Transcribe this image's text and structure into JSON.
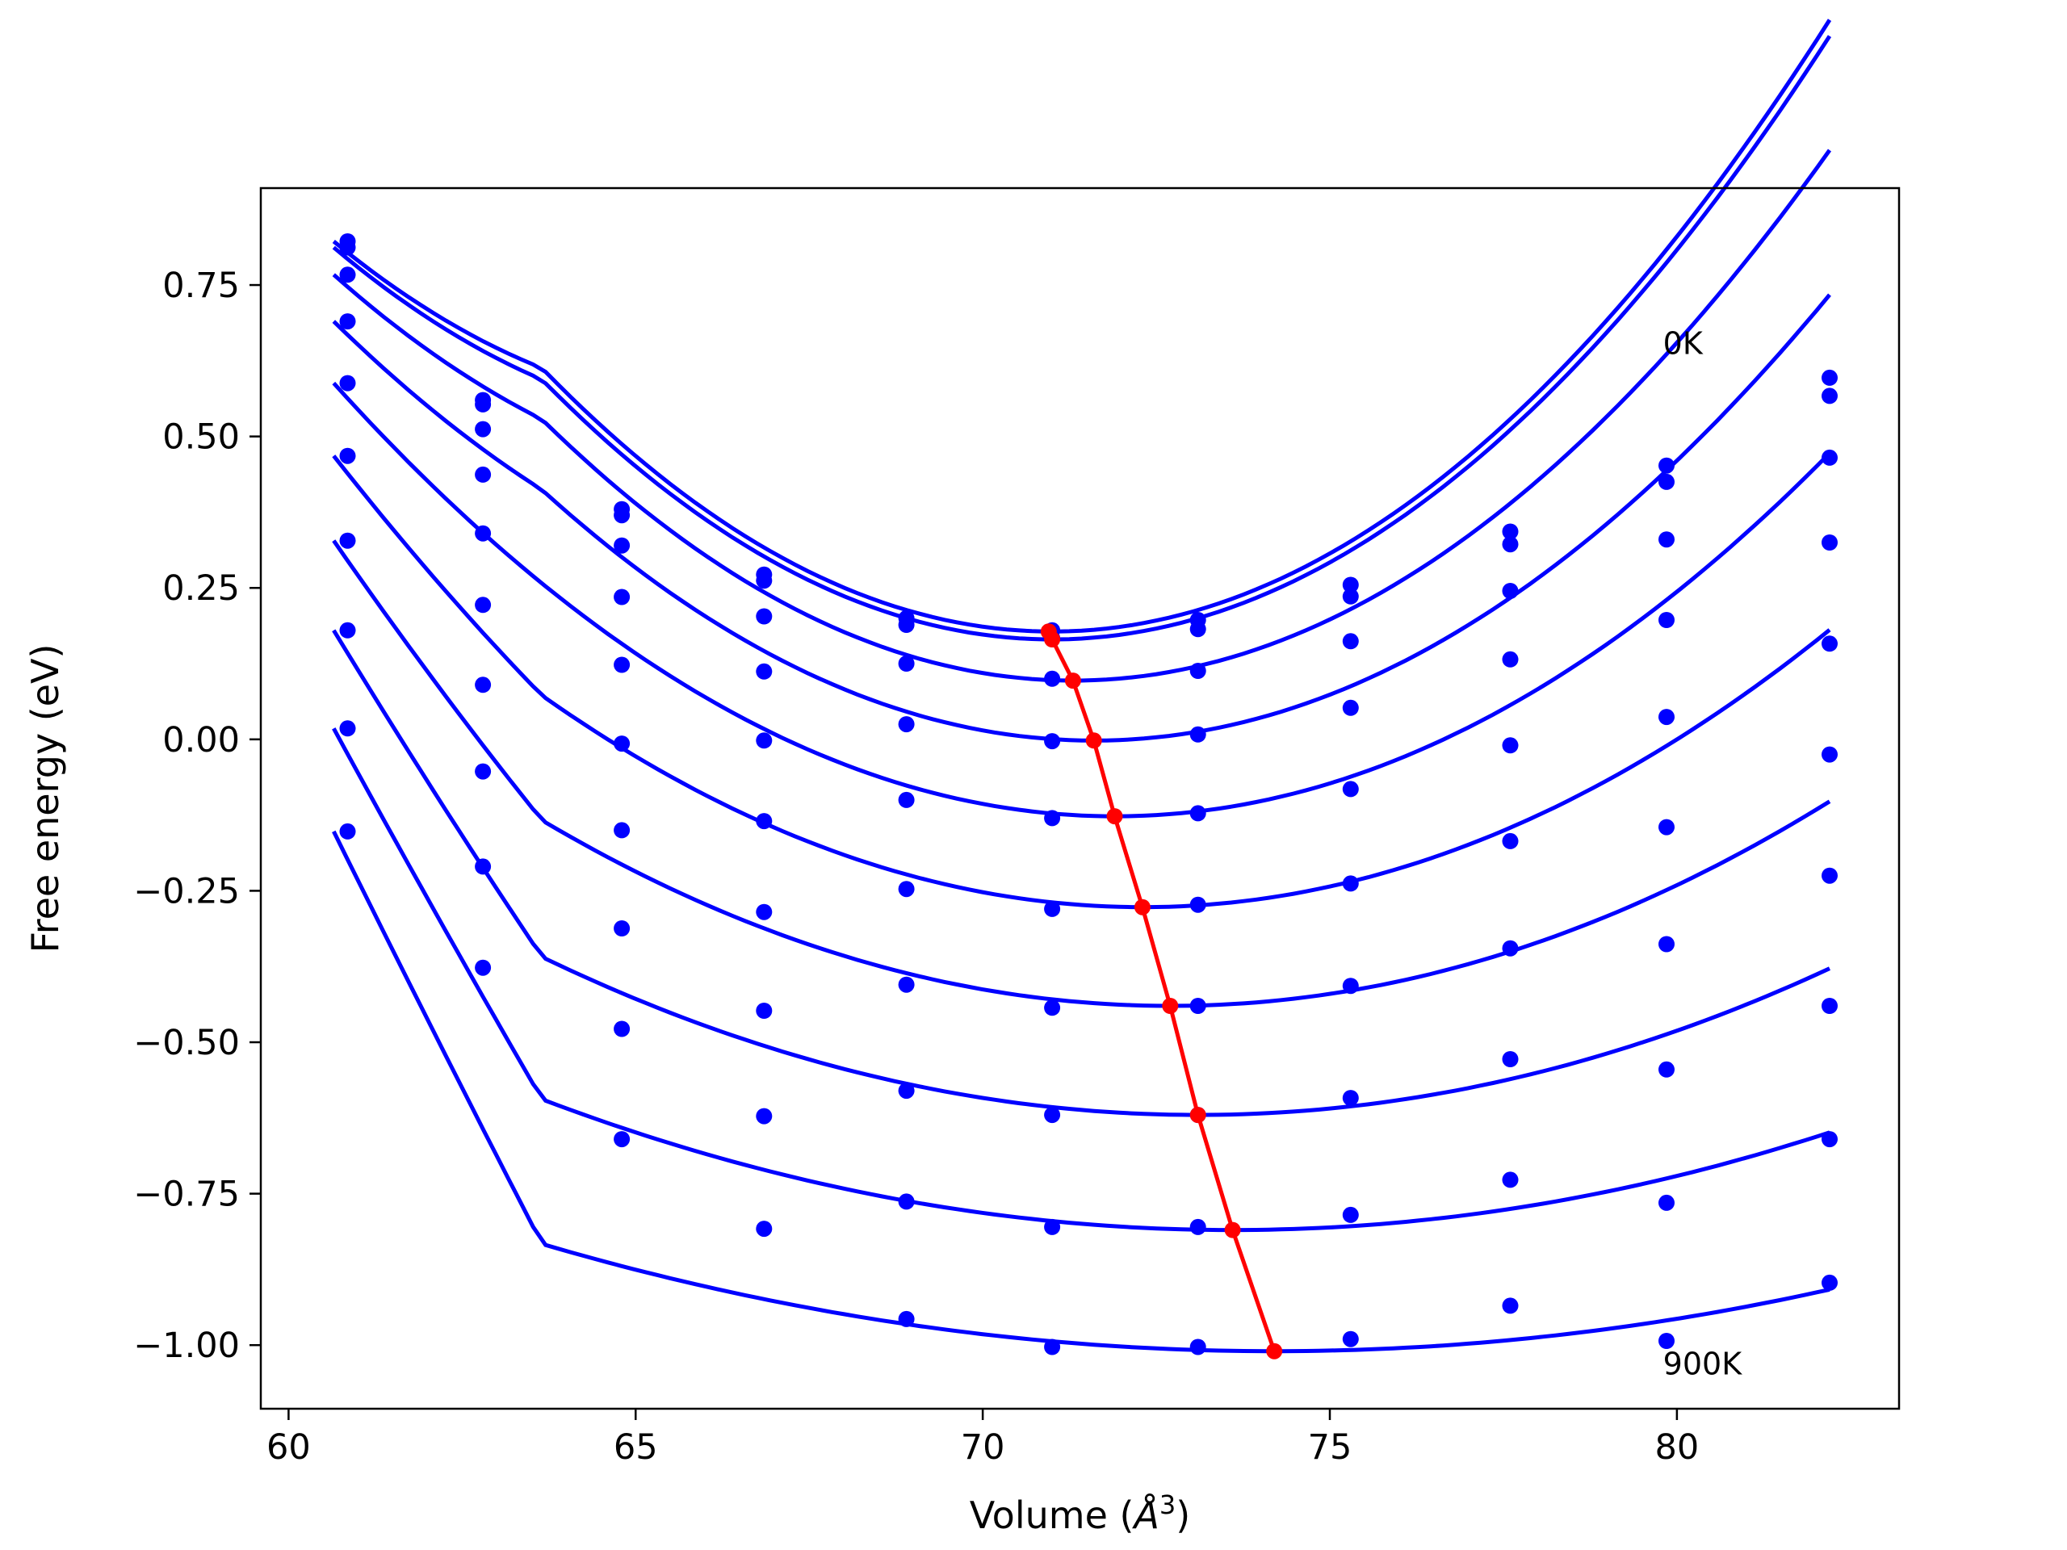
{
  "chart_data": {
    "type": "scatter",
    "xlabel": "Volume (Å³)",
    "xlabel_parts": {
      "main": "Volume (",
      "unit": "Å",
      "exp": "3",
      "close": ")"
    },
    "ylabel": "Free energy (eV)",
    "xlim": [
      59.6,
      83.2
    ],
    "ylim": [
      -1.105,
      0.91
    ],
    "x_ticks": [
      60,
      65,
      70,
      75,
      80
    ],
    "x_tick_labels": [
      "60",
      "65",
      "70",
      "75",
      "80"
    ],
    "y_ticks": [
      0.75,
      0.5,
      0.25,
      0.0,
      -0.25,
      -0.5,
      -0.75,
      -1.0
    ],
    "y_tick_labels": [
      "0.75",
      "0.50",
      "0.25",
      "0.00",
      "−0.25",
      "−0.50",
      "−0.75",
      "−1.00"
    ],
    "grid": false,
    "colors": {
      "series": "#0000ff",
      "minimum_line": "#ff0000"
    },
    "annotations": [
      {
        "text": "0K",
        "x": 79.8,
        "y": 0.655
      },
      {
        "text": "900K",
        "x": 79.8,
        "y": -1.03
      }
    ],
    "volumes": [
      60.85,
      62.8,
      64.8,
      66.85,
      68.9,
      71.0,
      73.1,
      75.3,
      77.6,
      79.85,
      82.2
    ],
    "series": [
      {
        "points": [
          0.822,
          0.56,
          0.38,
          0.272,
          0.2,
          0.18,
          0.197,
          0.255,
          0.343,
          0.452,
          0.597
        ],
        "fit": {
          "a": 0.00805,
          "v0": 71.0,
          "emin": 0.178,
          "start": 0.822
        }
      },
      {
        "points": [
          0.812,
          0.553,
          0.37,
          0.262,
          0.189,
          0.167,
          0.182,
          0.236,
          0.322,
          0.425,
          0.567
        ],
        "fit": {
          "a": 0.00794,
          "v0": 71.0,
          "emin": 0.165,
          "start": 0.812
        }
      },
      {
        "points": [
          0.767,
          0.512,
          0.32,
          0.203,
          0.125,
          0.1,
          0.113,
          0.162,
          0.245,
          0.33,
          0.465
        ],
        "fit": {
          "a": 0.00737,
          "v0": 71.3,
          "emin": 0.097,
          "start": 0.767
        }
      },
      {
        "points": [
          0.69,
          0.437,
          0.235,
          0.112,
          0.025,
          -0.003,
          0.008,
          0.052,
          0.132,
          0.197,
          0.325
        ],
        "fit": {
          "a": 0.00655,
          "v0": 71.6,
          "emin": -0.002,
          "start": 0.69
        }
      },
      {
        "points": [
          0.588,
          0.34,
          0.123,
          -0.002,
          -0.1,
          -0.13,
          -0.122,
          -0.082,
          -0.01,
          0.037,
          0.158
        ],
        "fit": {
          "a": 0.00565,
          "v0": 71.9,
          "emin": -0.127,
          "start": 0.588
        }
      },
      {
        "points": [
          0.468,
          0.222,
          -0.007,
          -0.135,
          -0.247,
          -0.28,
          -0.273,
          -0.238,
          -0.168,
          -0.145,
          -0.025
        ],
        "fit": {
          "a": 0.00467,
          "v0": 72.3,
          "emin": -0.277,
          "start": 0.468
        }
      },
      {
        "points": [
          0.328,
          0.09,
          -0.15,
          -0.285,
          -0.405,
          -0.443,
          -0.44,
          -0.407,
          -0.345,
          -0.338,
          -0.225
        ],
        "fit": {
          "a": 0.00374,
          "v0": 72.7,
          "emin": -0.44,
          "start": 0.328
        }
      },
      {
        "points": [
          0.18,
          -0.053,
          -0.312,
          -0.448,
          -0.58,
          -0.62,
          -0.62,
          -0.592,
          -0.528,
          -0.545,
          -0.44
        ],
        "fit": {
          "a": 0.00292,
          "v0": 73.1,
          "emin": -0.62,
          "start": 0.18
        }
      },
      {
        "points": [
          0.018,
          -0.21,
          -0.478,
          -0.622,
          -0.763,
          -0.805,
          -0.805,
          -0.785,
          -0.727,
          -0.765,
          -0.66
        ],
        "fit": {
          "a": 0.00218,
          "v0": 73.6,
          "emin": -0.81,
          "start": 0.018
        }
      },
      {
        "points": [
          -0.152,
          -0.377,
          -0.66,
          -0.808,
          -0.957,
          -1.003,
          -1.003,
          -0.99,
          -0.935,
          -0.993,
          -0.897
        ],
        "fit": {
          "a": 0.00159,
          "v0": 74.2,
          "emin": -1.01,
          "start": -0.152
        }
      }
    ],
    "minimum_curve": {
      "x": [
        70.95,
        71.0,
        71.3,
        71.6,
        71.9,
        72.3,
        72.7,
        73.1,
        73.6,
        74.2
      ],
      "y": [
        0.178,
        0.165,
        0.097,
        -0.002,
        -0.127,
        -0.277,
        -0.44,
        -0.62,
        -0.81,
        -1.01
      ]
    }
  }
}
